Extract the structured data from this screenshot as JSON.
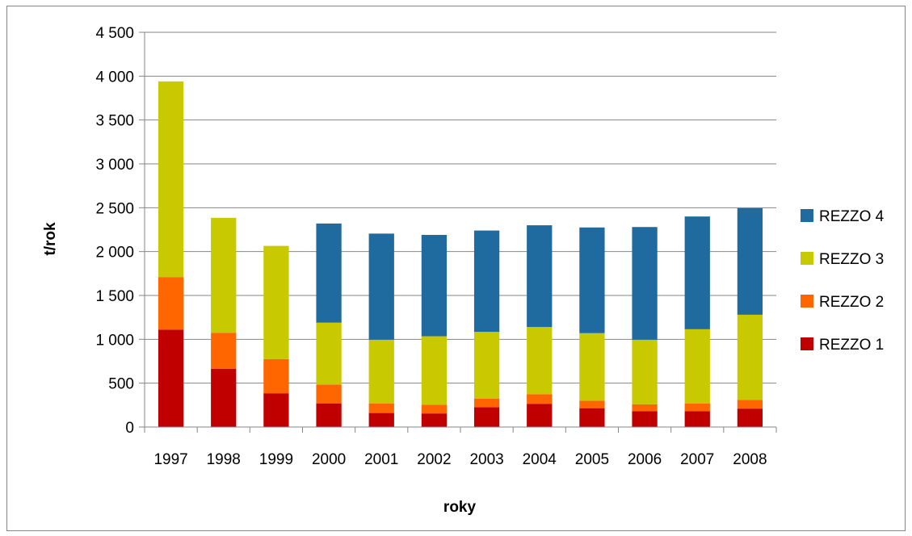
{
  "chart_data": {
    "type": "bar",
    "stacked": true,
    "title": "",
    "xlabel": "roky",
    "ylabel": "t/rok",
    "ylim": [
      0,
      4500
    ],
    "ytick_step": 500,
    "ytick_labels": [
      "0",
      "500",
      "1 000",
      "1 500",
      "2 000",
      "2 500",
      "3 000",
      "3 500",
      "4 000",
      "4 500"
    ],
    "grid": true,
    "legend_position": "right",
    "categories": [
      "1997",
      "1998",
      "1999",
      "2000",
      "2001",
      "2002",
      "2003",
      "2004",
      "2005",
      "2006",
      "2007",
      "2008"
    ],
    "series": [
      {
        "name": "REZZO 1",
        "color": "#C00000",
        "values": [
          1110,
          665,
          385,
          270,
          160,
          155,
          225,
          265,
          215,
          180,
          180,
          210
        ]
      },
      {
        "name": "REZZO 2",
        "color": "#FF6600",
        "values": [
          600,
          410,
          390,
          215,
          110,
          100,
          100,
          110,
          85,
          80,
          90,
          100
        ]
      },
      {
        "name": "REZZO 3",
        "color": "#C9C900",
        "values": [
          2230,
          1310,
          1290,
          705,
          725,
          780,
          760,
          765,
          770,
          735,
          845,
          970
        ]
      },
      {
        "name": "REZZO 4",
        "color": "#1F6A9E",
        "values": [
          0,
          0,
          0,
          1130,
          1210,
          1155,
          1155,
          1160,
          1205,
          1285,
          1285,
          1215
        ]
      }
    ],
    "legend_order": [
      "REZZO 4",
      "REZZO 3",
      "REZZO 2",
      "REZZO 1"
    ]
  }
}
